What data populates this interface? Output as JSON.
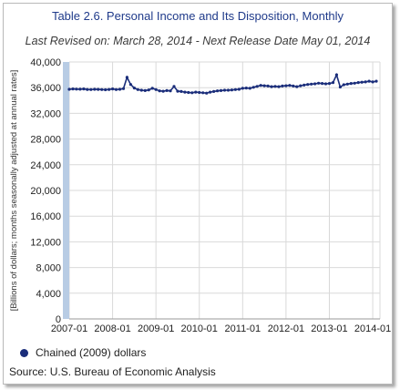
{
  "chart_data": {
    "type": "line",
    "title": "Table 2.6. Personal Income and Its Disposition, Monthly",
    "subtitle": "Last Revised on: March 28, 2014 - Next Release Date May 01, 2014",
    "ylabel": "[Billions of dollars; months seasonally adjusted at annual rates]",
    "xlabel": "",
    "ylim": [
      0,
      40000
    ],
    "yticks": [
      "0",
      "4,000",
      "8,000",
      "12,000",
      "16,000",
      "20,000",
      "24,000",
      "28,000",
      "32,000",
      "36,000",
      "40,000"
    ],
    "xticks": [
      "2007-01",
      "2008-01",
      "2009-01",
      "2010-01",
      "2011-01",
      "2012-01",
      "2013-01",
      "2014-01"
    ],
    "grid": true,
    "legend_position": "bottom-left",
    "colors": {
      "line": "#1a2d7a",
      "grid": "#d9d9d9",
      "axis_band": "#b8cce4"
    },
    "series": [
      {
        "name": "Chained (2009) dollars",
        "x": [
          "2007-01",
          "2007-02",
          "2007-03",
          "2007-04",
          "2007-05",
          "2007-06",
          "2007-07",
          "2007-08",
          "2007-09",
          "2007-10",
          "2007-11",
          "2007-12",
          "2008-01",
          "2008-02",
          "2008-03",
          "2008-04",
          "2008-05",
          "2008-06",
          "2008-07",
          "2008-08",
          "2008-09",
          "2008-10",
          "2008-11",
          "2008-12",
          "2009-01",
          "2009-02",
          "2009-03",
          "2009-04",
          "2009-05",
          "2009-06",
          "2009-07",
          "2009-08",
          "2009-09",
          "2009-10",
          "2009-11",
          "2009-12",
          "2010-01",
          "2010-02",
          "2010-03",
          "2010-04",
          "2010-05",
          "2010-06",
          "2010-07",
          "2010-08",
          "2010-09",
          "2010-10",
          "2010-11",
          "2010-12",
          "2011-01",
          "2011-02",
          "2011-03",
          "2011-04",
          "2011-05",
          "2011-06",
          "2011-07",
          "2011-08",
          "2011-09",
          "2011-10",
          "2011-11",
          "2011-12",
          "2012-01",
          "2012-02",
          "2012-03",
          "2012-04",
          "2012-05",
          "2012-06",
          "2012-07",
          "2012-08",
          "2012-09",
          "2012-10",
          "2012-11",
          "2012-12",
          "2013-01",
          "2013-02",
          "2013-03",
          "2013-04",
          "2013-05",
          "2013-06",
          "2013-07",
          "2013-08",
          "2013-09",
          "2013-10",
          "2013-11",
          "2013-12",
          "2014-01",
          "2014-02"
        ],
        "values": [
          35750,
          35800,
          35780,
          35760,
          35800,
          35720,
          35700,
          35750,
          35730,
          35700,
          35680,
          35720,
          35800,
          35700,
          35750,
          35850,
          37600,
          36500,
          35950,
          35700,
          35600,
          35550,
          35650,
          35900,
          35700,
          35500,
          35450,
          35550,
          35500,
          36200,
          35450,
          35400,
          35300,
          35250,
          35200,
          35300,
          35250,
          35200,
          35150,
          35300,
          35400,
          35500,
          35550,
          35600,
          35600,
          35650,
          35700,
          35750,
          35900,
          35950,
          35900,
          36050,
          36200,
          36350,
          36300,
          36250,
          36150,
          36200,
          36150,
          36250,
          36300,
          36350,
          36250,
          36150,
          36300,
          36400,
          36500,
          36550,
          36600,
          36700,
          36650,
          36600,
          36650,
          36800,
          38000,
          36100,
          36450,
          36550,
          36650,
          36700,
          36800,
          36850,
          36900,
          37000,
          36900,
          37000
        ]
      }
    ],
    "source": "Source: U.S. Bureau of Economic Analysis"
  }
}
